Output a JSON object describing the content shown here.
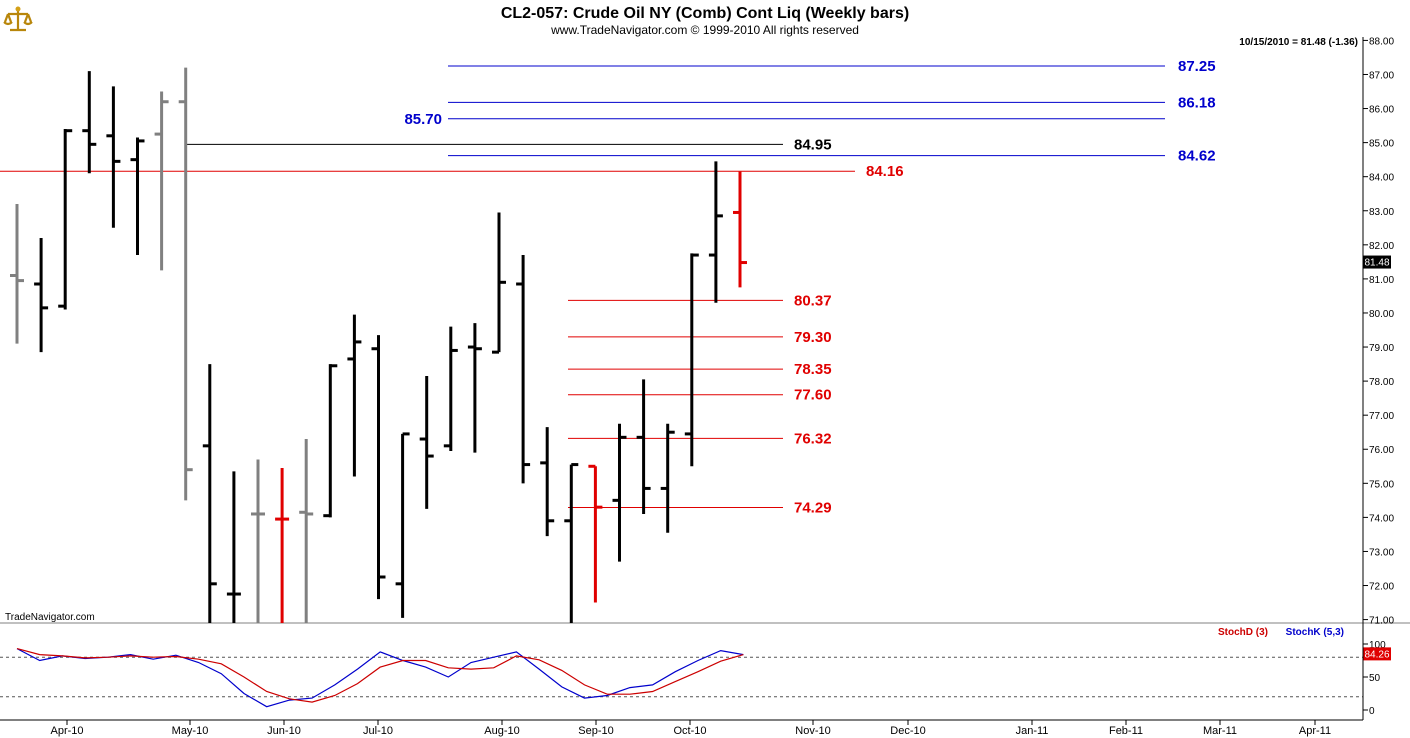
{
  "header": {
    "title": "CL2-057:  Crude Oil NY (Comb) Cont Liq  (Weekly bars)",
    "copyright": "www.TradeNavigator.com © 1999-2010 All rights reserved",
    "quote": "10/15/2010 = 81.48 (-1.36)",
    "last_price_tag": "81.48",
    "watermark": "TradeNavigator.com",
    "logo_icon": "scale-of-justice-icon"
  },
  "colors": {
    "bar_black": "#000000",
    "bar_gray": "#808080",
    "bar_red": "#e00000",
    "level_blue": "#0000cc",
    "level_red": "#e00000",
    "level_black": "#000000",
    "stoch_k": "#0000cc",
    "stoch_d": "#cc0000"
  },
  "chart_data": [
    {
      "type": "ohlc",
      "title": "CL2-057:  Crude Oil NY (Comb) Cont Liq  (Weekly bars)",
      "ylim": [
        70.9,
        88.1
      ],
      "y_ticks": [
        "88.00",
        "87.00",
        "86.00",
        "85.00",
        "84.00",
        "83.00",
        "82.00",
        "81.00",
        "80.00",
        "79.00",
        "78.00",
        "77.00",
        "76.00",
        "75.00",
        "74.00",
        "73.00",
        "72.00",
        "71.00"
      ],
      "x_ticks": [
        "Apr-10",
        "May-10",
        "Jun-10",
        "Jul-10",
        "Aug-10",
        "Sep-10",
        "Oct-10",
        "Nov-10",
        "Dec-10",
        "Jan-11",
        "Feb-11",
        "Mar-11",
        "Apr-11"
      ],
      "bars": [
        {
          "week": 0,
          "open": 81.1,
          "high": 83.2,
          "low": 79.1,
          "close": 80.95,
          "color": "gray"
        },
        {
          "week": 1,
          "open": 80.85,
          "high": 82.2,
          "low": 78.85,
          "close": 80.15,
          "color": "black"
        },
        {
          "week": 2,
          "open": 80.2,
          "high": 85.4,
          "low": 80.1,
          "close": 85.35,
          "color": "black"
        },
        {
          "week": 3,
          "open": 85.35,
          "high": 87.1,
          "low": 84.1,
          "close": 84.95,
          "color": "black"
        },
        {
          "week": 4,
          "open": 85.2,
          "high": 86.65,
          "low": 82.5,
          "close": 84.45,
          "color": "black"
        },
        {
          "week": 5,
          "open": 84.5,
          "high": 85.15,
          "low": 81.7,
          "close": 85.05,
          "color": "black"
        },
        {
          "week": 6,
          "open": 85.25,
          "high": 86.5,
          "low": 81.25,
          "close": 86.2,
          "color": "gray"
        },
        {
          "week": 7,
          "open": 86.2,
          "high": 87.2,
          "low": 74.5,
          "close": 75.4,
          "color": "gray"
        },
        {
          "week": 8,
          "open": 76.1,
          "high": 78.5,
          "low": 70.9,
          "close": 72.05,
          "color": "black"
        },
        {
          "week": 9,
          "open": 71.75,
          "high": 75.35,
          "low": 70.9,
          "close": 71.75,
          "color": "black"
        },
        {
          "week": 10,
          "open": 74.1,
          "high": 75.7,
          "low": 70.9,
          "close": 74.1,
          "color": "gray"
        },
        {
          "week": 11,
          "open": 73.95,
          "high": 75.45,
          "low": 70.9,
          "close": 73.95,
          "color": "red"
        },
        {
          "week": 12,
          "open": 74.15,
          "high": 76.3,
          "low": 70.9,
          "close": 74.1,
          "color": "gray"
        },
        {
          "week": 13,
          "open": 74.05,
          "high": 78.5,
          "low": 74.0,
          "close": 78.45,
          "color": "black"
        },
        {
          "week": 14,
          "open": 78.65,
          "high": 79.95,
          "low": 75.2,
          "close": 79.15,
          "color": "black"
        },
        {
          "week": 15,
          "open": 78.95,
          "high": 79.35,
          "low": 71.6,
          "close": 72.25,
          "color": "black"
        },
        {
          "week": 16,
          "open": 72.05,
          "high": 76.45,
          "low": 71.05,
          "close": 76.45,
          "color": "black"
        },
        {
          "week": 17,
          "open": 76.3,
          "high": 78.15,
          "low": 74.25,
          "close": 75.8,
          "color": "black"
        },
        {
          "week": 18,
          "open": 76.1,
          "high": 79.6,
          "low": 75.95,
          "close": 78.9,
          "color": "black"
        },
        {
          "week": 19,
          "open": 79.0,
          "high": 79.7,
          "low": 75.9,
          "close": 78.95,
          "color": "black"
        },
        {
          "week": 20,
          "open": 78.85,
          "high": 82.95,
          "low": 78.85,
          "close": 80.9,
          "color": "black"
        },
        {
          "week": 21,
          "open": 80.85,
          "high": 81.7,
          "low": 75.0,
          "close": 75.55,
          "color": "black"
        },
        {
          "week": 22,
          "open": 75.6,
          "high": 76.65,
          "low": 73.45,
          "close": 73.9,
          "color": "black"
        },
        {
          "week": 23,
          "open": 73.9,
          "high": 75.55,
          "low": 70.9,
          "close": 75.55,
          "color": "black"
        },
        {
          "week": 24,
          "open": 75.5,
          "high": 75.5,
          "low": 71.5,
          "close": 74.3,
          "color": "red"
        },
        {
          "week": 25,
          "open": 74.5,
          "high": 76.75,
          "low": 72.7,
          "close": 76.35,
          "color": "black"
        },
        {
          "week": 26,
          "open": 76.35,
          "high": 78.05,
          "low": 74.1,
          "close": 74.85,
          "color": "black"
        },
        {
          "week": 27,
          "open": 74.85,
          "high": 76.75,
          "low": 73.55,
          "close": 76.5,
          "color": "black"
        },
        {
          "week": 28,
          "open": 76.45,
          "high": 81.75,
          "low": 75.5,
          "close": 81.7,
          "color": "black"
        },
        {
          "week": 29,
          "open": 81.7,
          "high": 84.45,
          "low": 80.3,
          "close": 82.85,
          "color": "black"
        },
        {
          "week": 30,
          "open": 82.95,
          "high": 84.15,
          "low": 80.75,
          "close": 81.48,
          "color": "red"
        }
      ],
      "levels": [
        {
          "value": 87.25,
          "label": "87.25",
          "color": "blue",
          "side": "right"
        },
        {
          "value": 86.18,
          "label": "86.18",
          "color": "blue",
          "side": "right"
        },
        {
          "value": 85.7,
          "label": "85.70",
          "color": "blue",
          "side": "left"
        },
        {
          "value": 84.95,
          "label": "84.95",
          "color": "black",
          "side": "right"
        },
        {
          "value": 84.62,
          "label": "84.62",
          "color": "blue",
          "side": "right"
        },
        {
          "value": 84.16,
          "label": "84.16",
          "color": "red",
          "side": "right"
        },
        {
          "value": 80.37,
          "label": "80.37",
          "color": "red",
          "side": "right"
        },
        {
          "value": 79.3,
          "label": "79.30",
          "color": "red",
          "side": "right"
        },
        {
          "value": 78.35,
          "label": "78.35",
          "color": "red",
          "side": "right"
        },
        {
          "value": 77.6,
          "label": "77.60",
          "color": "red",
          "side": "right"
        },
        {
          "value": 76.32,
          "label": "76.32",
          "color": "red",
          "side": "right"
        },
        {
          "value": 74.29,
          "label": "74.29",
          "color": "red",
          "side": "right"
        }
      ]
    },
    {
      "type": "line",
      "ylim": [
        0,
        100
      ],
      "y_ticks": [
        "100",
        "50",
        "0"
      ],
      "reference_lines": [
        80,
        20
      ],
      "last_value_tag": "84.26",
      "series": [
        {
          "name": "StochK (5,3)",
          "color": "blue",
          "values": [
            93,
            75,
            82,
            78,
            80,
            84,
            77,
            83,
            72,
            55,
            25,
            5,
            15,
            18,
            38,
            62,
            88,
            75,
            65,
            50,
            72,
            80,
            88,
            62,
            35,
            18,
            22,
            34,
            38,
            58,
            75,
            90,
            84
          ]
        },
        {
          "name": "StochD (3)",
          "color": "red",
          "values": [
            93,
            84,
            82,
            79,
            80,
            82,
            80,
            81,
            77,
            70,
            50,
            28,
            17,
            12,
            22,
            40,
            65,
            75,
            75,
            64,
            62,
            64,
            82,
            76,
            60,
            38,
            24,
            24,
            28,
            43,
            58,
            74,
            84
          ]
        }
      ]
    }
  ]
}
